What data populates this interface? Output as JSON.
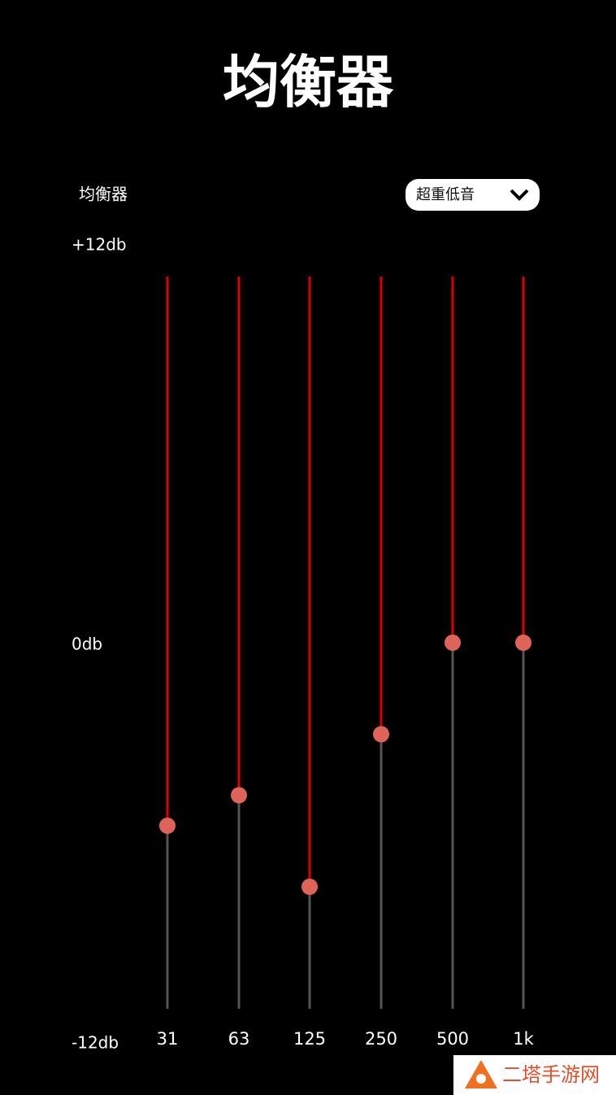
{
  "header": {
    "title": "均衡器"
  },
  "toolbar": {
    "label": "均衡器",
    "preset": "超重低音"
  },
  "scale": [
    {
      "value": 12,
      "label": "+12db"
    },
    {
      "value": 0,
      "label": "0db"
    },
    {
      "value": -12,
      "label": "-12db"
    }
  ],
  "bands": [
    {
      "label": "31",
      "value": -6
    },
    {
      "label": "63",
      "value": -5
    },
    {
      "label": "125",
      "value": -8
    },
    {
      "label": "250",
      "value": -3
    },
    {
      "label": "500",
      "value": 0
    },
    {
      "label": "1k",
      "value": 0
    }
  ],
  "watermark": "二塔手游网"
}
